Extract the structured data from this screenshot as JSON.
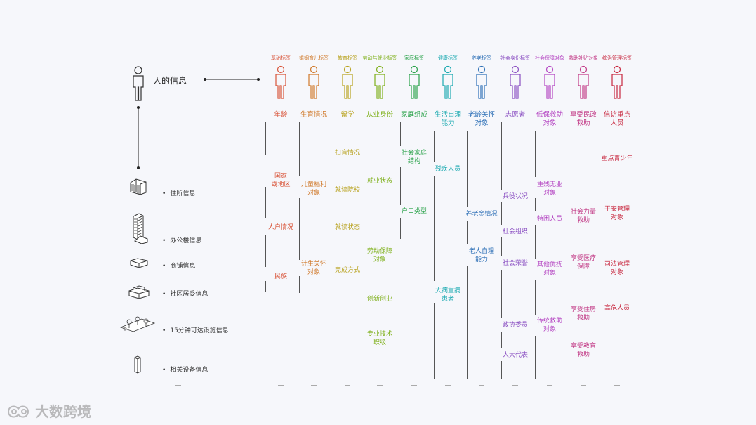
{
  "person_title": "人的信息",
  "left_items": [
    {
      "label": "住所信息",
      "icon": "residence-building-icon"
    },
    {
      "label": "办公楼信息",
      "icon": "office-tower-icon"
    },
    {
      "label": "商铺信息",
      "icon": "shop-icon"
    },
    {
      "label": "社区居委信息",
      "icon": "community-committee-icon"
    },
    {
      "label": "15分钟可达设施信息",
      "icon": "facilities-icon"
    },
    {
      "label": "相关设备信息",
      "icon": "device-icon"
    }
  ],
  "columns": [
    {
      "category": "基础标签",
      "color": "#d9553a",
      "title": "年龄",
      "items": [
        "国家\n或地区",
        "人户情况",
        "民族"
      ]
    },
    {
      "category": "婚姻育儿标签",
      "color": "#d0792a",
      "title": "生育情况",
      "items": [
        "儿童福利\n对象",
        "计生关怀\n对象"
      ]
    },
    {
      "category": "教育标签",
      "color": "#b8a21d",
      "title": "留学",
      "items": [
        "扫盲情况",
        "就读院校",
        "就读状态",
        "完成方式"
      ]
    },
    {
      "category": "劳动与就业标签",
      "color": "#7fb01b",
      "title": "从业身份",
      "items": [
        "就业状态",
        "劳动保障\n对象",
        "创新创业",
        "专业技术\n职级"
      ]
    },
    {
      "category": "家庭标签",
      "color": "#2aa24a",
      "title": "家庭组成",
      "items": [
        "社会家庭\n结构",
        "户口类型"
      ]
    },
    {
      "category": "健康标签",
      "color": "#1aa9b0",
      "title": "生活自理\n能力",
      "items": [
        "残疾人员",
        "大病重病\n患者"
      ]
    },
    {
      "category": "养老标签",
      "color": "#2c6fb6",
      "title": "老龄关怀\n对象",
      "items": [
        "养老金情况",
        "老人自理\n能力"
      ]
    },
    {
      "category": "社会身份标签",
      "color": "#8a4fc2",
      "title": "志愿者",
      "items": [
        "兵役状况",
        "社会组织",
        "社会荣誉",
        "政协委员",
        "人大代表"
      ]
    },
    {
      "category": "社会保障对象",
      "color": "#b445c2",
      "title": "低保救助\n对象",
      "items": [
        "重残无业\n对象",
        "特困人员",
        "其他优抚\n对象",
        "传统救助\n对象"
      ]
    },
    {
      "category": "救助补贴对象",
      "color": "#c23a86",
      "title": "享受民政\n救助",
      "items": [
        "社会力量\n救助",
        "享受医疗\n保障",
        "享受住房\n救助",
        "享受教育\n救助"
      ]
    },
    {
      "category": "综治管理标签",
      "color": "#c8283f",
      "title": "信访重点\n人员",
      "items": [
        "重点青少年",
        "平安管理\n对象",
        "司法管理\n对象",
        "高危人员"
      ]
    }
  ],
  "brand": "大数跨境",
  "brand_icon": "brand-logo-icon"
}
